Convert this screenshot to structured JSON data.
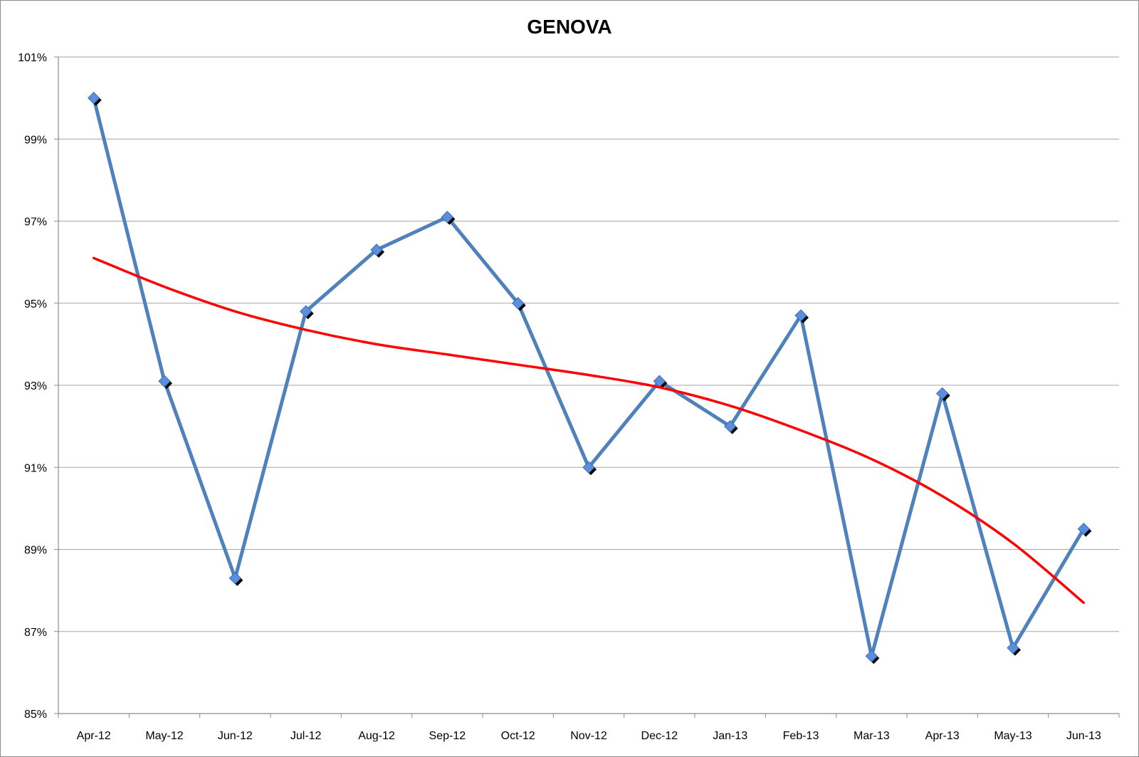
{
  "chart_data": {
    "type": "line",
    "title": "GENOVA",
    "xlabel": "",
    "ylabel": "",
    "categories": [
      "Apr-12",
      "May-12",
      "Jun-12",
      "Jul-12",
      "Aug-12",
      "Sep-12",
      "Oct-12",
      "Nov-12",
      "Dec-12",
      "Jan-13",
      "Feb-13",
      "Mar-13",
      "Apr-13",
      "May-13",
      "Jun-13"
    ],
    "ylim": [
      85,
      101
    ],
    "yticks": [
      85,
      87,
      89,
      91,
      93,
      95,
      97,
      99,
      101
    ],
    "ytick_format": "%",
    "grid": true,
    "legend": "none",
    "series": [
      {
        "values": [
          100.0,
          93.1,
          88.3,
          94.8,
          96.3,
          97.1,
          95.0,
          91.0,
          93.1,
          92.0,
          94.7,
          86.4,
          92.8,
          86.6,
          89.5
        ],
        "color": "#4f81bd",
        "marker": "diamond",
        "marker_color": "#5b8fdc"
      },
      {
        "values": [
          96.1,
          95.4,
          94.8,
          94.35,
          94.0,
          93.75,
          93.5,
          93.25,
          92.95,
          92.5,
          91.9,
          91.2,
          90.3,
          89.15,
          87.7
        ],
        "color": "#ff0000",
        "smooth": true,
        "marker": "none"
      }
    ]
  }
}
